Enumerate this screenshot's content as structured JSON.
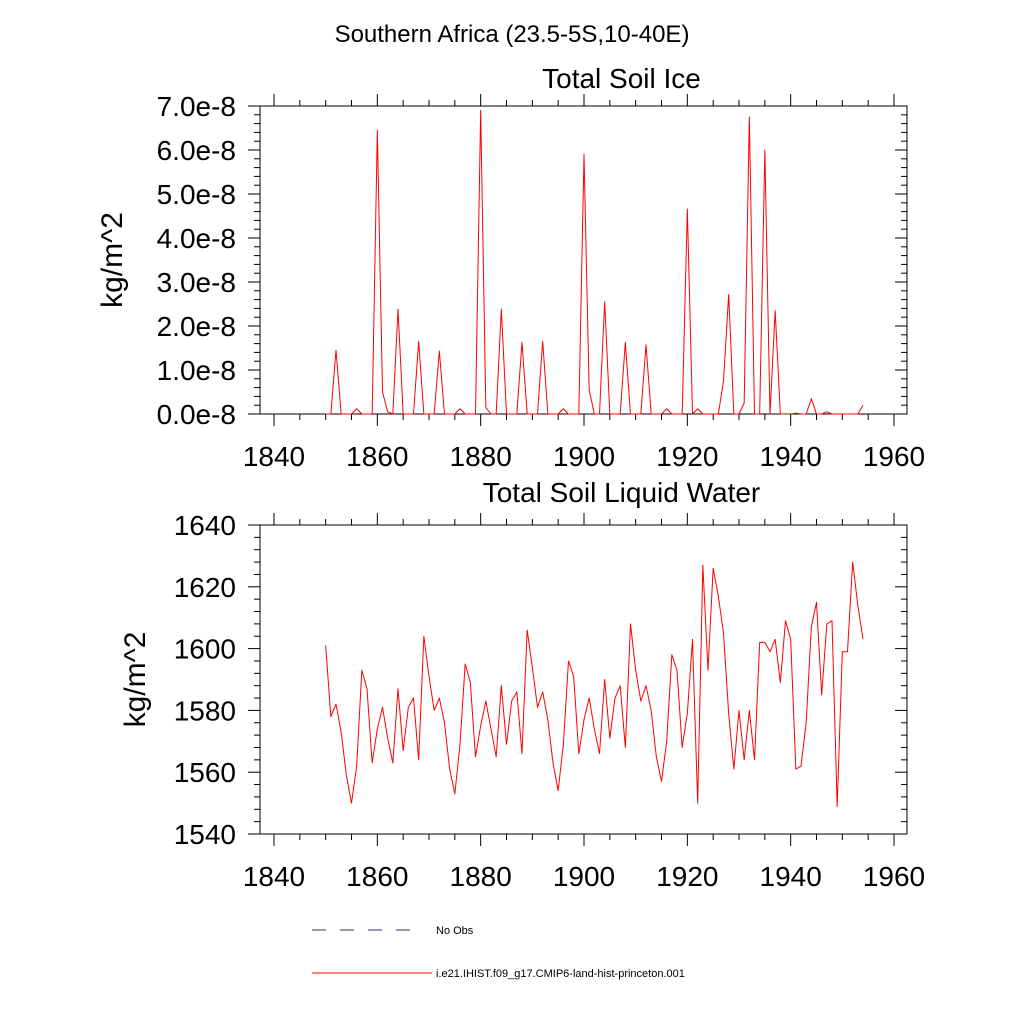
{
  "figure_title": "Southern Africa (23.5-5S,10-40E)",
  "colors": {
    "model_line": "#ff0000",
    "obs_line": "#2a2a7a",
    "axis": "#000000"
  },
  "chart_data": [
    {
      "type": "line",
      "title": "Total Soil Ice",
      "ylabel": "kg/m^2",
      "xlim": [
        1840,
        1960
      ],
      "ylim": [
        0,
        7e-08
      ],
      "xticks": [
        1840,
        1860,
        1880,
        1900,
        1920,
        1940,
        1960
      ],
      "xtick_labels": [
        "1840",
        "1860",
        "1880",
        "1900",
        "1920",
        "1940",
        "1960"
      ],
      "yticks": [
        0,
        1e-08,
        2e-08,
        3e-08,
        4e-08,
        5e-08,
        6e-08,
        7e-08
      ],
      "ytick_labels": [
        "0.0e-8",
        "1.0e-8",
        "2.0e-8",
        "3.0e-8",
        "4.0e-8",
        "5.0e-8",
        "6.0e-8",
        "7.0e-8"
      ],
      "series": [
        {
          "name": "i.e21.IHIST.f09_g17.CMIP6-land-hist-princeton.001",
          "x": [
            1850,
            1851,
            1852,
            1853,
            1854,
            1855,
            1856,
            1857,
            1858,
            1859,
            1860,
            1861,
            1862,
            1863,
            1864,
            1865,
            1866,
            1867,
            1868,
            1869,
            1870,
            1871,
            1872,
            1873,
            1874,
            1875,
            1876,
            1877,
            1878,
            1879,
            1880,
            1881,
            1882,
            1883,
            1884,
            1885,
            1886,
            1887,
            1888,
            1889,
            1890,
            1891,
            1892,
            1893,
            1894,
            1895,
            1896,
            1897,
            1898,
            1899,
            1900,
            1901,
            1902,
            1903,
            1904,
            1905,
            1906,
            1907,
            1908,
            1909,
            1910,
            1911,
            1912,
            1913,
            1914,
            1915,
            1916,
            1917,
            1918,
            1919,
            1920,
            1921,
            1922,
            1923,
            1924,
            1925,
            1926,
            1927,
            1928,
            1929,
            1930,
            1931,
            1932,
            1933,
            1934,
            1935,
            1936,
            1937,
            1938,
            1939,
            1940,
            1941,
            1942,
            1943,
            1944,
            1945,
            1946,
            1947,
            1948,
            1949,
            1950,
            1951,
            1952,
            1953,
            1954
          ],
          "y": [
            0,
            0,
            1.45e-08,
            0,
            0,
            0,
            1.2e-09,
            0,
            0,
            0,
            6.45e-08,
            5e-09,
            5e-10,
            0,
            2.38e-08,
            0,
            0,
            0,
            1.65e-08,
            0,
            0,
            0,
            1.43e-08,
            0,
            0,
            0,
            1.2e-09,
            0,
            0,
            0,
            6.9e-08,
            1.5e-09,
            0,
            0,
            2.38e-08,
            0,
            0,
            0,
            1.63e-08,
            0,
            0,
            0,
            1.65e-08,
            0,
            0,
            0,
            1.2e-09,
            0,
            0,
            0,
            5.9e-08,
            5.5e-09,
            0,
            0,
            2.55e-08,
            0,
            0,
            0,
            1.63e-08,
            0,
            0,
            0,
            1.57e-08,
            0,
            0,
            0,
            1.2e-09,
            0,
            0,
            0,
            4.66e-08,
            0,
            1.2e-09,
            0,
            0,
            0,
            0,
            7.5e-09,
            2.72e-08,
            0,
            0,
            2.5e-09,
            6.75e-08,
            0,
            0,
            6e-08,
            0,
            2.35e-08,
            0,
            0,
            0,
            2e-10,
            0,
            0,
            3.5e-09,
            0,
            0,
            5e-10,
            0,
            0,
            0,
            0,
            0,
            0,
            2e-09
          ]
        }
      ]
    },
    {
      "type": "line",
      "title": "Total Soil Liquid Water",
      "ylabel": "kg/m^2",
      "xlim": [
        1840,
        1960
      ],
      "ylim": [
        1540,
        1640
      ],
      "xticks": [
        1840,
        1860,
        1880,
        1900,
        1920,
        1940,
        1960
      ],
      "xtick_labels": [
        "1840",
        "1860",
        "1880",
        "1900",
        "1920",
        "1940",
        "1960"
      ],
      "yticks": [
        1540,
        1560,
        1580,
        1600,
        1620,
        1640
      ],
      "ytick_labels": [
        "1540",
        "1560",
        "1580",
        "1600",
        "1620",
        "1640"
      ],
      "series": [
        {
          "name": "i.e21.IHIST.f09_g17.CMIP6-land-hist-princeton.001",
          "x": [
            1850,
            1851,
            1852,
            1853,
            1854,
            1855,
            1856,
            1857,
            1858,
            1859,
            1860,
            1861,
            1862,
            1863,
            1864,
            1865,
            1866,
            1867,
            1868,
            1869,
            1870,
            1871,
            1872,
            1873,
            1874,
            1875,
            1876,
            1877,
            1878,
            1879,
            1880,
            1881,
            1882,
            1883,
            1884,
            1885,
            1886,
            1887,
            1888,
            1889,
            1890,
            1891,
            1892,
            1893,
            1894,
            1895,
            1896,
            1897,
            1898,
            1899,
            1900,
            1901,
            1902,
            1903,
            1904,
            1905,
            1906,
            1907,
            1908,
            1909,
            1910,
            1911,
            1912,
            1913,
            1914,
            1915,
            1916,
            1917,
            1918,
            1919,
            1920,
            1921,
            1922,
            1923,
            1924,
            1925,
            1926,
            1927,
            1928,
            1929,
            1930,
            1931,
            1932,
            1933,
            1934,
            1935,
            1936,
            1937,
            1938,
            1939,
            1940,
            1941,
            1942,
            1943,
            1944,
            1945,
            1946,
            1947,
            1948,
            1949,
            1950,
            1951,
            1952,
            1953,
            1954
          ],
          "y": [
            1601,
            1578,
            1582,
            1573,
            1559,
            1550,
            1562,
            1593,
            1587,
            1563,
            1574,
            1581,
            1571,
            1563,
            1587,
            1567,
            1581,
            1584,
            1564,
            1604,
            1591,
            1580,
            1584,
            1576,
            1561,
            1553,
            1569,
            1595,
            1589,
            1565,
            1575,
            1583,
            1574,
            1565,
            1588,
            1569,
            1583,
            1586,
            1566,
            1606,
            1594,
            1581,
            1586,
            1577,
            1563,
            1554,
            1569,
            1596,
            1591,
            1566,
            1577,
            1584,
            1574,
            1566,
            1590,
            1571,
            1584,
            1588,
            1568,
            1608,
            1593,
            1583,
            1588,
            1580,
            1565,
            1557,
            1570,
            1598,
            1593,
            1568,
            1579,
            1603,
            1550,
            1627,
            1593,
            1626,
            1617,
            1605,
            1579,
            1561,
            1580,
            1564,
            1580,
            1564,
            1602,
            1602,
            1599,
            1603,
            1589,
            1609,
            1603,
            1561,
            1562,
            1576,
            1607,
            1615,
            1585,
            1608,
            1609,
            1549,
            1599,
            1599,
            1628,
            1614,
            1603
          ]
        }
      ]
    }
  ],
  "legend": {
    "obs_label": "No Obs",
    "model_label": "i.e21.IHIST.f09_g17.CMIP6-land-hist-princeton.001"
  }
}
